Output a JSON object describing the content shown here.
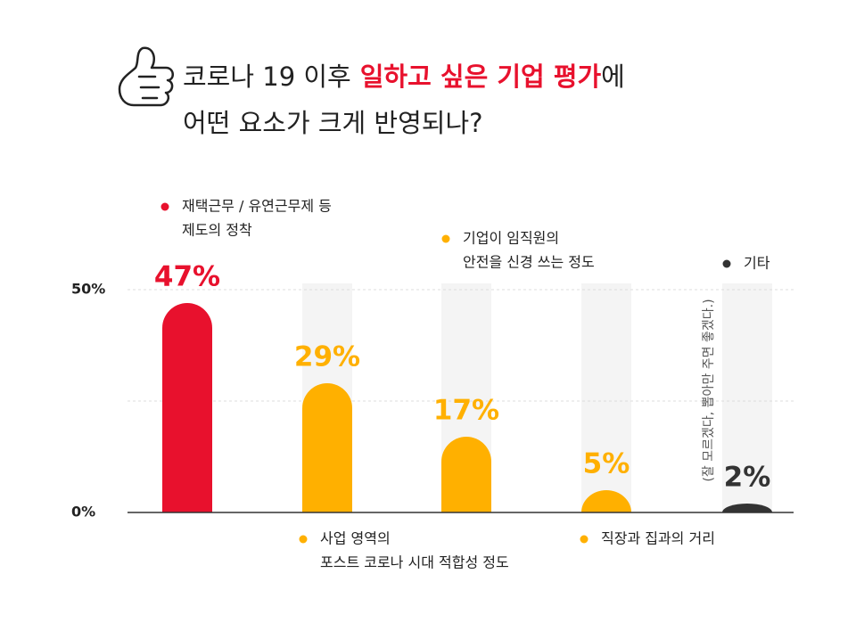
{
  "chart_data": {
    "type": "bar",
    "title_line1_before": "코로나 19 이후",
    "title_highlight": "일하고 싶은 기업 평가",
    "title_line1_after": "에",
    "title_line2": "어떤 요소가 크게 반영되나?",
    "categories": [
      [
        "재택근무 / 유연근무제 등",
        "제도의 정착"
      ],
      [
        "사업 영역의",
        "포스트 코로나 시대 적합성 정도"
      ],
      [
        "기업이 임직원의",
        "안전을 신경 쓰는 정도"
      ],
      [
        "직장과 집과의 거리"
      ],
      [
        "기타"
      ]
    ],
    "values": [
      47,
      29,
      17,
      5,
      2
    ],
    "value_labels": [
      "47%",
      "29%",
      "17%",
      "5%",
      "2%"
    ],
    "colors": [
      "#e8112d",
      "#ffb000",
      "#ffb000",
      "#ffb000",
      "#333333"
    ],
    "ylim": [
      0,
      50
    ],
    "yticks": [
      {
        "value": 0,
        "label": "0%"
      },
      {
        "value": 50,
        "label": "50%"
      }
    ],
    "gridlines": [
      25,
      50
    ],
    "annotation": "(잘 모르겠다, 뽑아만 주면 좋겠다.)"
  }
}
